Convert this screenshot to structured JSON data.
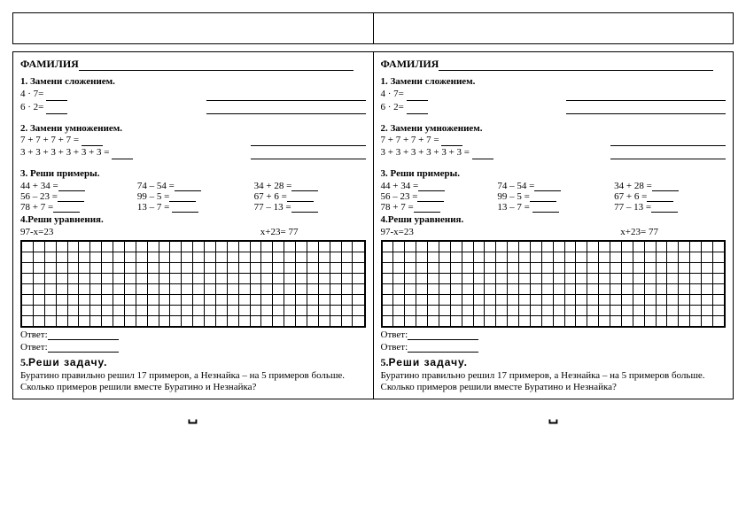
{
  "surname_label": "ФАМИЛИЯ",
  "section1": {
    "title": "1. Замени сложением.",
    "items": [
      "4 · 7= ",
      "6 · 2= "
    ]
  },
  "section2": {
    "title": "2. Замени умножением.",
    "items": [
      "7 + 7 + 7 + 7 = ",
      "3 + 3 + 3 + 3 + 3 + 3 = "
    ]
  },
  "section3": {
    "title": "3. Реши примеры.",
    "rows": [
      [
        "44 + 34 =",
        "74 – 54 =",
        "34 + 28 ="
      ],
      [
        "56 – 23 =",
        "99 – 5 =",
        "67 + 6 ="
      ],
      [
        "78 + 7 =",
        "13 – 7 = ",
        "77 – 13 ="
      ]
    ]
  },
  "section4": {
    "title": "4.Реши уравнения.",
    "eq1": "97-х=23",
    "eq2": "х+23= 77"
  },
  "grid": {
    "rows": 8,
    "cols": 30
  },
  "answer_label": "Ответ:",
  "section5": {
    "num": "5.",
    "title": "Реши задачу.",
    "text": "Буратино правильно решил 17 примеров, а Незнайка – на 5 примеров больше. Сколько примеров решили вместе Буратино и Незнайка?"
  }
}
